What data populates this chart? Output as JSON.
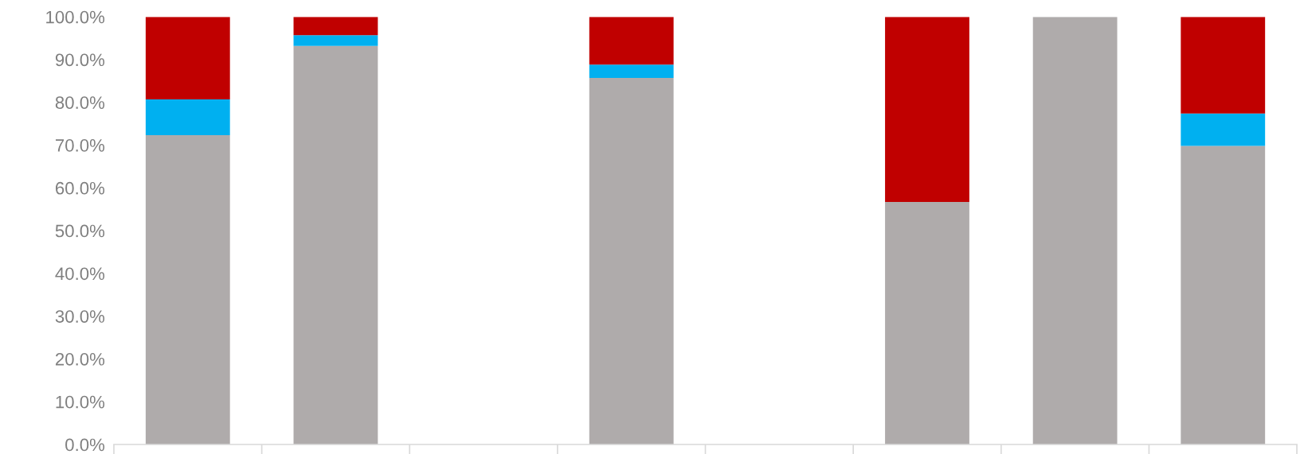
{
  "chart_data": {
    "type": "bar",
    "stacked": true,
    "categories": [
      null,
      null,
      null,
      null,
      null,
      null,
      null,
      null
    ],
    "series": [
      {
        "color": "#afabab",
        "values": [
          72.3,
          93.2,
          null,
          85.7,
          null,
          56.7,
          100,
          69.8
        ]
      },
      {
        "color": "#00b0f0",
        "values": [
          8.4,
          2.5,
          null,
          3.1,
          null,
          0,
          0,
          7.6
        ]
      },
      {
        "color": "#c00000",
        "values": [
          19.3,
          4.3,
          null,
          11.2,
          null,
          43.3,
          0,
          22.6
        ]
      }
    ],
    "ylim": [
      0,
      100
    ],
    "yticks": [
      {
        "value": 0,
        "label": "0.0%"
      },
      {
        "value": 10,
        "label": "10.0%"
      },
      {
        "value": 20,
        "label": "20.0%"
      },
      {
        "value": 30,
        "label": "30.0%"
      },
      {
        "value": 40,
        "label": "40.0%"
      },
      {
        "value": 50,
        "label": "50.0%"
      },
      {
        "value": 60,
        "label": "60.0%"
      },
      {
        "value": 70,
        "label": "70.0%"
      },
      {
        "value": 80,
        "label": "80.0%"
      },
      {
        "value": 90,
        "label": "90.0%"
      },
      {
        "value": 100,
        "label": "100.0%"
      }
    ],
    "grid": false,
    "legend": false
  }
}
